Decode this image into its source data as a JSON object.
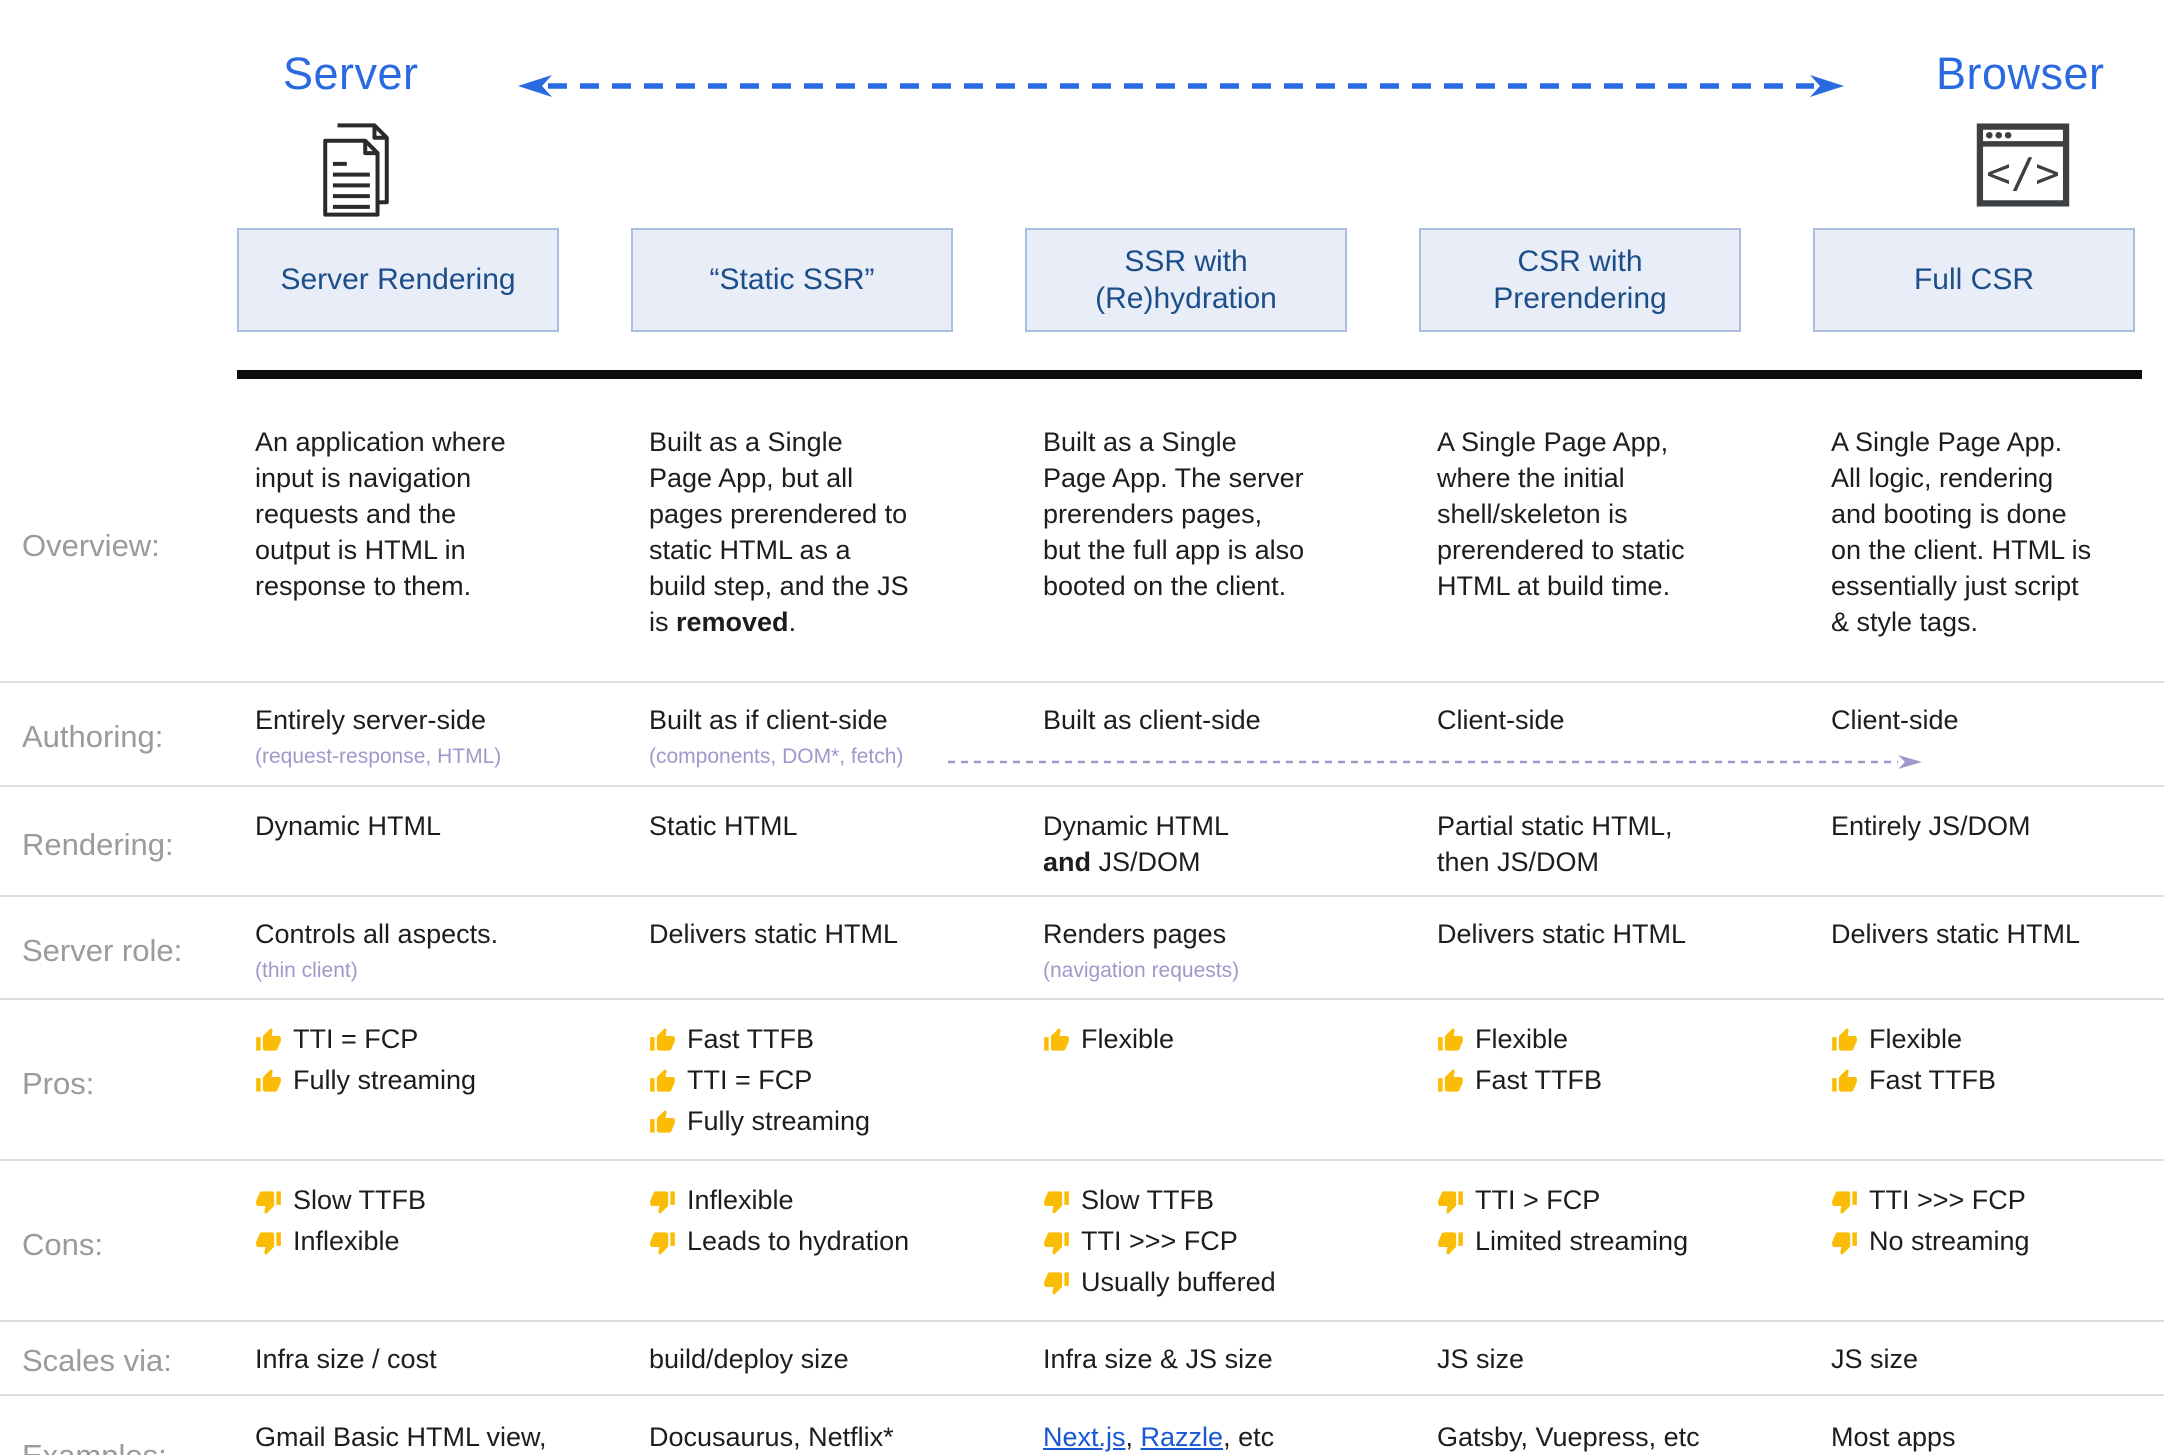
{
  "header": {
    "server_label": "Server",
    "browser_label": "Browser",
    "columns": [
      "Server Rendering",
      "“Static SSR”",
      "SSR with (Re)hydration",
      "CSR with Prerendering",
      "Full CSR"
    ]
  },
  "rows": {
    "overview": {
      "label": "Overview:",
      "cells": [
        {
          "text": "An application where input is navigation requests and the output is HTML in response to them."
        },
        {
          "pre": "Built as a Single Page App, but all pages prerendered to static HTML as a build step, and the JS is ",
          "bold": "removed",
          "post": "."
        },
        {
          "text": "Built as a Single Page App. The server prerenders pages, but the full app is also booted on the client."
        },
        {
          "text": "A Single Page App, where the initial shell/skeleton is prerendered to static HTML at build time."
        },
        {
          "text": "A Single Page App. All logic, rendering and booting is done on the client. HTML is essentially just script & style tags."
        }
      ]
    },
    "authoring": {
      "label": "Authoring:",
      "cells": [
        {
          "text": "Entirely server-side",
          "note": "(request-response, HTML)"
        },
        {
          "text": "Built as if client-side",
          "note": "(components, DOM*, fetch)"
        },
        {
          "text": "Built as client-side"
        },
        {
          "text": "Client-side"
        },
        {
          "text": "Client-side"
        }
      ]
    },
    "rendering": {
      "label": "Rendering:",
      "cells": [
        {
          "text": "Dynamic HTML"
        },
        {
          "text": "Static HTML"
        },
        {
          "pre": "Dynamic HTML ",
          "bold": "and",
          "post": " JS/DOM"
        },
        {
          "text": "Partial static HTML, then JS/DOM"
        },
        {
          "text": "Entirely JS/DOM"
        }
      ]
    },
    "server_role": {
      "label": "Server role:",
      "cells": [
        {
          "text": "Controls all aspects.",
          "note": "(thin client)"
        },
        {
          "text": "Delivers static HTML"
        },
        {
          "text": "Renders pages",
          "note": "(navigation requests)"
        },
        {
          "text": "Delivers static HTML"
        },
        {
          "text": "Delivers static HTML"
        }
      ]
    },
    "pros": {
      "label": "Pros:",
      "cells": [
        [
          "TTI = FCP",
          "Fully streaming"
        ],
        [
          "Fast TTFB",
          "TTI = FCP",
          "Fully streaming"
        ],
        [
          "Flexible"
        ],
        [
          "Flexible",
          "Fast TTFB"
        ],
        [
          "Flexible",
          "Fast TTFB"
        ]
      ]
    },
    "cons": {
      "label": "Cons:",
      "cells": [
        [
          "Slow TTFB",
          "Inflexible"
        ],
        [
          "Inflexible",
          "Leads to hydration"
        ],
        [
          "Slow TTFB",
          "TTI >>> FCP",
          "Usually buffered"
        ],
        [
          "TTI > FCP",
          "Limited streaming"
        ],
        [
          "TTI >>> FCP",
          "No streaming"
        ]
      ]
    },
    "scales_via": {
      "label": "Scales via:",
      "cells": [
        {
          "text": "Infra size / cost"
        },
        {
          "text": "build/deploy size"
        },
        {
          "text": "Infra size & JS size"
        },
        {
          "text": "JS size"
        },
        {
          "text": "JS size"
        }
      ]
    },
    "examples": {
      "label": "Examples:",
      "cells": [
        {
          "text": "Gmail Basic HTML view, Hacker News"
        },
        {
          "text": "Docusaurus, Netflix*"
        },
        {
          "links": [
            "Next.js",
            "Razzle"
          ],
          "separator": ", ",
          "suffix": ", etc"
        },
        {
          "text": "Gatsby, Vuepress, etc"
        },
        {
          "text": "Most apps"
        }
      ]
    }
  },
  "colors": {
    "accent_blue": "#2a6ae0",
    "box_fill": "#e8edf8",
    "box_border": "#a9bdde",
    "box_text": "#1c4e8a",
    "note_purple": "#9e99cb",
    "link_blue": "#1757d6",
    "thumb_yellow": "#fbbc05",
    "label_gray": "#9b9b9b"
  }
}
